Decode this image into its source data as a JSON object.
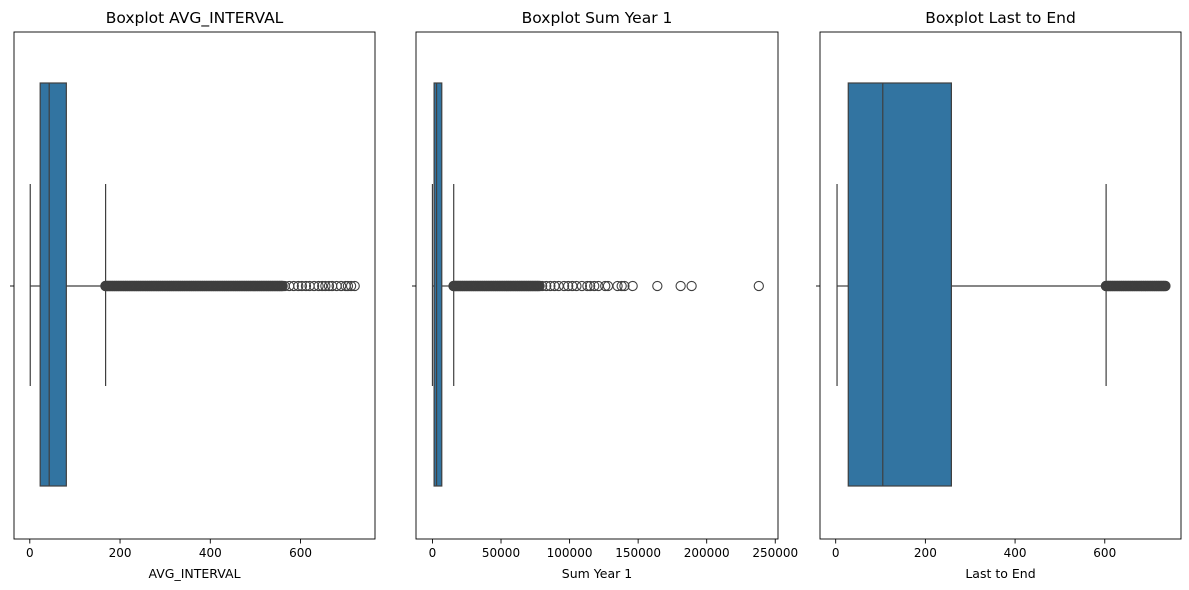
{
  "colors": {
    "box_fill": "#3274a1",
    "line": "#3f3f3f",
    "frame": "#000000",
    "background": "#ffffff"
  },
  "chart_data": [
    {
      "type": "boxplot",
      "title": "Boxplot AVG_INTERVAL",
      "xlabel": "AVG_INTERVAL",
      "ylabel": "",
      "orientation": "horizontal",
      "xlim": [
        -35,
        765
      ],
      "xticks": [
        0,
        200,
        400,
        600
      ],
      "xtick_labels": [
        "0",
        "200",
        "400",
        "600"
      ],
      "box": {
        "whisker_low": 1,
        "q1": 23,
        "median": 43,
        "q3": 81,
        "whisker_high": 168
      },
      "outlier_range": [
        168,
        720
      ],
      "outliers_dense_until": 560,
      "outliers": [
        565,
        575,
        585,
        595,
        603,
        612,
        620,
        630,
        640,
        648,
        655,
        663,
        670,
        680,
        690,
        700,
        705,
        712,
        720
      ]
    },
    {
      "type": "boxplot",
      "title": "Boxplot Sum Year 1",
      "xlabel": "Sum Year 1",
      "ylabel": "",
      "orientation": "horizontal",
      "xlim": [
        -12000,
        252000
      ],
      "xticks": [
        0,
        50000,
        100000,
        150000,
        200000,
        250000
      ],
      "xtick_labels": [
        "0",
        "50000",
        "100000",
        "150000",
        "200000",
        "250000"
      ],
      "box": {
        "whisker_low": 0,
        "q1": 1200,
        "median": 3000,
        "q3": 6800,
        "whisker_high": 15500
      },
      "outlier_range": [
        15500,
        240000
      ],
      "outliers_dense_until": 78000,
      "outliers": [
        80000,
        83000,
        86000,
        89000,
        92000,
        96000,
        99000,
        102000,
        105000,
        109000,
        113000,
        115000,
        118000,
        121000,
        126000,
        128000,
        135000,
        138000,
        140000,
        146000,
        164000,
        181000,
        189000,
        238000
      ]
    },
    {
      "type": "boxplot",
      "title": "Boxplot Last to End",
      "xlabel": "Last to End",
      "ylabel": "",
      "orientation": "horizontal",
      "xlim": [
        -35,
        770
      ],
      "xticks": [
        0,
        200,
        400,
        600
      ],
      "xtick_labels": [
        "0",
        "200",
        "400",
        "600"
      ],
      "box": {
        "whisker_low": 3,
        "q1": 28,
        "median": 105,
        "q3": 258,
        "whisker_high": 603
      },
      "outlier_range": [
        603,
        735
      ],
      "outliers_dense_until": 735,
      "outliers": []
    }
  ]
}
